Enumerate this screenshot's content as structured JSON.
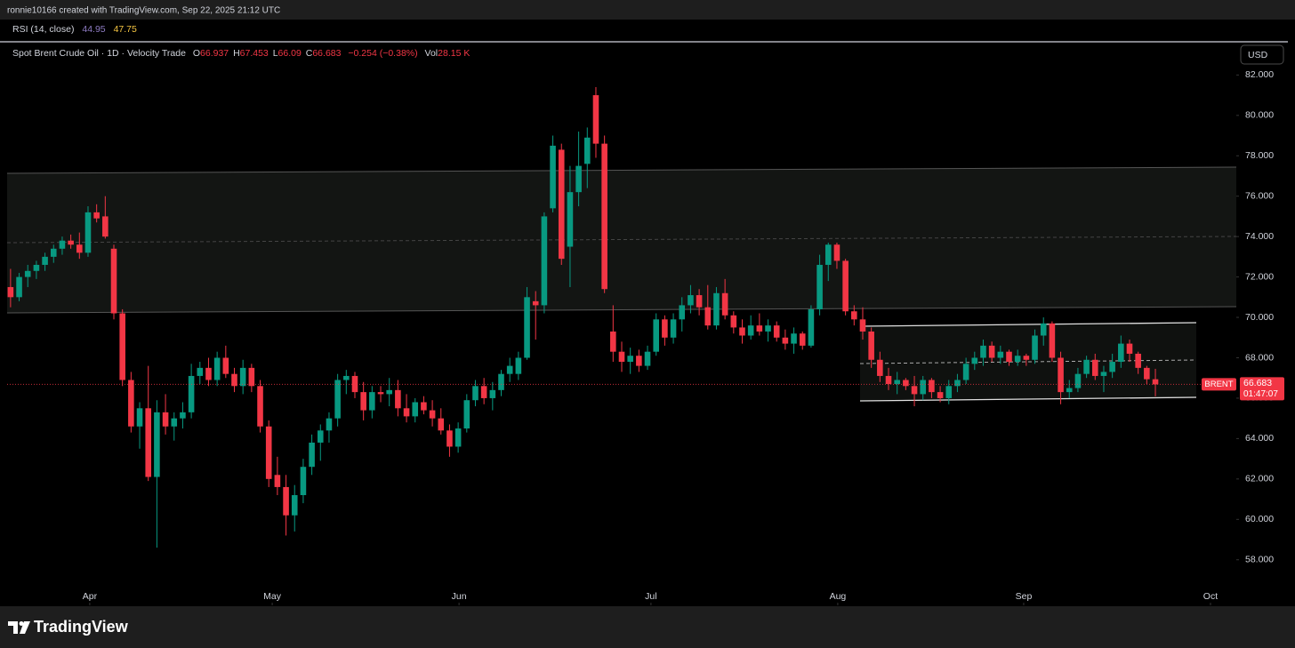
{
  "header": {
    "attribution": "ronnie10166 created with TradingView.com, Sep 22, 2025 21:12 UTC"
  },
  "indicator": {
    "name": "RSI (14, close)",
    "values": [
      44.95,
      47.75
    ],
    "colors": [
      "#8e7cc3",
      "#f5c542"
    ]
  },
  "chart_data": {
    "type": "candlestick",
    "title": "Spot Brent Crude Oil · 1D · Velocity Trade",
    "ohlc_labels": [
      "O",
      "H",
      "L",
      "C"
    ],
    "change": "−0.254 (−0.38%)",
    "volume_label": "Vol",
    "volume": "28.15 K",
    "currency": "USD",
    "symbol": "BRENT",
    "countdown": "01:47:07",
    "up_color": "#089981",
    "down_color": "#f23645",
    "ylim": [
      55.7,
      83.6
    ],
    "yticks": [
      {
        "value": 58,
        "label": "58.000"
      },
      {
        "value": 60,
        "label": "60.000"
      },
      {
        "value": 62,
        "label": "62.000"
      },
      {
        "value": 64,
        "label": "64.000"
      },
      {
        "value": 66,
        "label": "66.000"
      },
      {
        "value": 68,
        "label": "68.000"
      },
      {
        "value": 70,
        "label": "70.000"
      },
      {
        "value": 72,
        "label": "72.000"
      },
      {
        "value": 74,
        "label": "74.000"
      },
      {
        "value": 76,
        "label": "76.000"
      },
      {
        "value": 78,
        "label": "78.000"
      },
      {
        "value": 80,
        "label": "80.000"
      },
      {
        "value": 82,
        "label": "82.000"
      }
    ],
    "xlim": [
      -0.4,
      142.4
    ],
    "xticks": [
      {
        "value": 9.2,
        "label": "Apr"
      },
      {
        "value": 30.4,
        "label": "May"
      },
      {
        "value": 52.1,
        "label": "Jun"
      },
      {
        "value": 74.4,
        "label": "Jul"
      },
      {
        "value": 96.1,
        "label": "Aug"
      },
      {
        "value": 117.7,
        "label": "Sep"
      },
      {
        "value": 139.4,
        "label": "Oct"
      }
    ],
    "ohlc": [
      [
        71.5,
        72.4,
        70.5,
        71.0
      ],
      [
        71.0,
        72.2,
        70.8,
        72.0
      ],
      [
        72.0,
        72.6,
        71.5,
        72.3
      ],
      [
        72.3,
        72.8,
        71.9,
        72.6
      ],
      [
        72.6,
        73.2,
        72.3,
        73.0
      ],
      [
        73.0,
        73.6,
        72.7,
        73.4
      ],
      [
        73.4,
        74.0,
        73.1,
        73.8
      ],
      [
        73.8,
        74.1,
        73.4,
        73.6
      ],
      [
        73.6,
        74.2,
        72.9,
        73.2
      ],
      [
        73.2,
        75.5,
        73.0,
        75.2
      ],
      [
        75.2,
        75.6,
        74.7,
        74.9
      ],
      [
        75.0,
        76.0,
        73.9,
        74.0
      ],
      [
        73.4,
        73.6,
        69.9,
        70.2
      ],
      [
        70.2,
        70.4,
        66.6,
        66.9
      ],
      [
        66.9,
        67.3,
        64.3,
        64.6
      ],
      [
        64.6,
        65.8,
        63.5,
        65.5
      ],
      [
        65.5,
        67.6,
        61.9,
        62.1
      ],
      [
        62.1,
        65.9,
        58.6,
        65.3
      ],
      [
        65.3,
        66.2,
        64.2,
        64.6
      ],
      [
        64.6,
        65.3,
        63.9,
        65.0
      ],
      [
        65.0,
        65.8,
        64.5,
        65.3
      ],
      [
        65.3,
        67.7,
        65.0,
        67.1
      ],
      [
        67.1,
        67.8,
        66.7,
        67.5
      ],
      [
        67.5,
        68.0,
        66.6,
        66.9
      ],
      [
        66.9,
        68.3,
        66.6,
        68.0
      ],
      [
        68.0,
        68.6,
        67.0,
        67.2
      ],
      [
        67.2,
        67.5,
        66.3,
        66.6
      ],
      [
        66.6,
        67.9,
        66.2,
        67.5
      ],
      [
        67.5,
        67.7,
        66.3,
        66.6
      ],
      [
        66.6,
        66.9,
        64.3,
        64.6
      ],
      [
        64.6,
        64.9,
        61.6,
        62.0
      ],
      [
        62.2,
        63.1,
        61.2,
        61.6
      ],
      [
        61.6,
        62.2,
        59.2,
        60.2
      ],
      [
        60.2,
        61.7,
        59.4,
        61.2
      ],
      [
        61.2,
        63.0,
        60.8,
        62.6
      ],
      [
        62.6,
        64.2,
        62.2,
        63.8
      ],
      [
        63.8,
        64.7,
        62.9,
        64.4
      ],
      [
        64.4,
        65.3,
        63.8,
        65.0
      ],
      [
        65.0,
        67.2,
        64.6,
        66.9
      ],
      [
        66.9,
        67.4,
        66.2,
        67.1
      ],
      [
        67.1,
        67.3,
        66.0,
        66.3
      ],
      [
        66.3,
        66.8,
        64.9,
        65.4
      ],
      [
        65.4,
        66.6,
        65.0,
        66.3
      ],
      [
        66.3,
        66.6,
        65.8,
        66.2
      ],
      [
        66.2,
        67.0,
        65.6,
        66.4
      ],
      [
        66.4,
        66.9,
        65.1,
        65.5
      ],
      [
        65.5,
        66.2,
        64.8,
        65.1
      ],
      [
        65.1,
        66.0,
        64.8,
        65.8
      ],
      [
        65.8,
        66.1,
        65.2,
        65.4
      ],
      [
        65.4,
        65.9,
        64.6,
        65.0
      ],
      [
        65.0,
        65.5,
        64.2,
        64.4
      ],
      [
        64.4,
        64.7,
        63.1,
        63.6
      ],
      [
        63.6,
        64.8,
        63.3,
        64.5
      ],
      [
        64.5,
        66.2,
        64.3,
        65.9
      ],
      [
        65.9,
        66.9,
        65.6,
        66.6
      ],
      [
        66.6,
        67.0,
        65.7,
        66.0
      ],
      [
        66.0,
        66.8,
        65.4,
        66.4
      ],
      [
        66.4,
        67.4,
        66.1,
        67.2
      ],
      [
        67.2,
        68.0,
        66.8,
        67.6
      ],
      [
        67.2,
        68.3,
        66.9,
        68.0
      ],
      [
        68.0,
        71.5,
        67.9,
        71.0
      ],
      [
        70.8,
        71.3,
        68.9,
        70.6
      ],
      [
        70.6,
        75.2,
        70.2,
        75.0
      ],
      [
        75.4,
        79.0,
        75.2,
        78.5
      ],
      [
        78.3,
        78.6,
        72.6,
        72.9
      ],
      [
        73.5,
        77.5,
        71.5,
        76.2
      ],
      [
        76.2,
        79.2,
        75.5,
        77.5
      ],
      [
        77.6,
        79.4,
        76.4,
        78.9
      ],
      [
        81.0,
        81.4,
        77.9,
        78.6
      ],
      [
        78.6,
        79.0,
        71.2,
        71.4
      ],
      [
        69.3,
        70.6,
        67.8,
        68.3
      ],
      [
        68.3,
        68.8,
        67.3,
        67.8
      ],
      [
        67.8,
        68.5,
        67.2,
        68.1
      ],
      [
        68.1,
        68.4,
        67.3,
        67.6
      ],
      [
        67.6,
        68.6,
        67.4,
        68.3
      ],
      [
        68.3,
        70.2,
        68.1,
        69.9
      ],
      [
        69.9,
        70.1,
        68.6,
        69.0
      ],
      [
        69.0,
        70.2,
        68.7,
        69.9
      ],
      [
        69.9,
        71.0,
        69.3,
        70.6
      ],
      [
        70.6,
        71.6,
        70.2,
        71.1
      ],
      [
        71.1,
        71.4,
        70.1,
        70.5
      ],
      [
        70.5,
        71.6,
        69.4,
        69.6
      ],
      [
        69.6,
        71.5,
        69.4,
        71.2
      ],
      [
        71.2,
        71.9,
        69.9,
        70.1
      ],
      [
        70.1,
        70.3,
        69.2,
        69.5
      ],
      [
        69.5,
        69.9,
        68.7,
        69.1
      ],
      [
        69.1,
        70.1,
        68.9,
        69.6
      ],
      [
        69.6,
        70.2,
        69.1,
        69.3
      ],
      [
        69.3,
        69.9,
        68.8,
        69.6
      ],
      [
        69.6,
        69.8,
        68.8,
        69.0
      ],
      [
        69.0,
        69.4,
        68.4,
        68.7
      ],
      [
        68.7,
        69.5,
        68.2,
        69.2
      ],
      [
        69.2,
        69.3,
        68.4,
        68.6
      ],
      [
        68.6,
        70.6,
        68.5,
        70.4
      ],
      [
        70.4,
        73.1,
        70.1,
        72.6
      ],
      [
        72.6,
        73.7,
        71.8,
        73.6
      ],
      [
        73.6,
        73.7,
        72.4,
        72.8
      ],
      [
        72.8,
        72.9,
        70.1,
        70.3
      ],
      [
        70.3,
        70.6,
        69.6,
        69.9
      ],
      [
        69.9,
        70.5,
        68.9,
        69.3
      ],
      [
        69.3,
        69.5,
        67.5,
        67.9
      ],
      [
        67.9,
        68.3,
        66.8,
        67.1
      ],
      [
        67.1,
        67.5,
        66.4,
        66.7
      ],
      [
        66.7,
        67.3,
        66.2,
        66.9
      ],
      [
        66.9,
        67.0,
        66.4,
        66.6
      ],
      [
        66.6,
        67.1,
        65.6,
        66.2
      ],
      [
        66.2,
        67.1,
        65.9,
        66.9
      ],
      [
        66.9,
        67.0,
        66.0,
        66.3
      ],
      [
        66.3,
        66.6,
        65.8,
        66.0
      ],
      [
        66.0,
        66.9,
        65.7,
        66.6
      ],
      [
        66.6,
        67.2,
        66.3,
        66.9
      ],
      [
        66.9,
        68.0,
        66.7,
        67.7
      ],
      [
        67.7,
        68.3,
        67.4,
        68.0
      ],
      [
        68.0,
        68.9,
        67.6,
        68.6
      ],
      [
        68.6,
        68.8,
        67.8,
        68.0
      ],
      [
        68.0,
        68.6,
        67.7,
        68.3
      ],
      [
        68.3,
        68.4,
        67.6,
        67.8
      ],
      [
        67.8,
        68.4,
        67.6,
        68.1
      ],
      [
        68.1,
        68.2,
        67.6,
        67.9
      ],
      [
        67.9,
        69.4,
        67.7,
        69.1
      ],
      [
        69.1,
        70.0,
        68.6,
        69.7
      ],
      [
        69.7,
        69.8,
        67.8,
        68.0
      ],
      [
        68.0,
        68.3,
        65.7,
        66.3
      ],
      [
        66.3,
        66.9,
        66.0,
        66.5
      ],
      [
        66.5,
        67.5,
        66.3,
        67.2
      ],
      [
        67.2,
        68.1,
        67.0,
        67.9
      ],
      [
        67.9,
        68.2,
        66.9,
        67.1
      ],
      [
        67.1,
        67.6,
        66.3,
        67.3
      ],
      [
        67.3,
        68.2,
        67.0,
        67.8
      ],
      [
        67.8,
        69.1,
        67.5,
        68.7
      ],
      [
        68.7,
        68.9,
        67.8,
        68.2
      ],
      [
        68.2,
        68.3,
        67.2,
        67.5
      ],
      [
        67.5,
        67.6,
        66.7,
        66.937
      ],
      [
        66.937,
        67.453,
        66.09,
        66.683
      ]
    ]
  },
  "footer": {
    "brand": "TradingView"
  }
}
